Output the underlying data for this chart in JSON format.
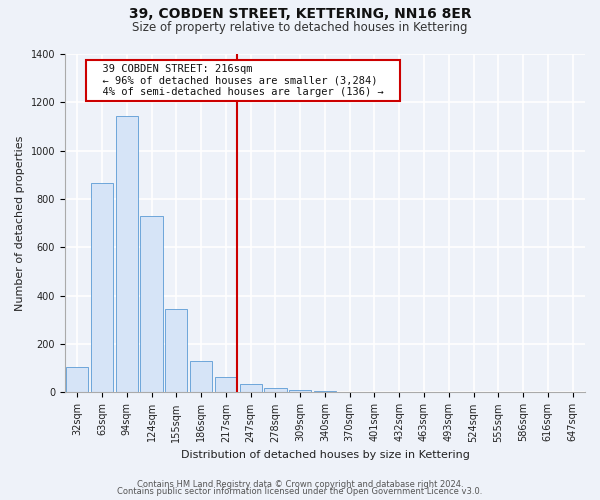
{
  "title": "39, COBDEN STREET, KETTERING, NN16 8ER",
  "subtitle": "Size of property relative to detached houses in Kettering",
  "xlabel": "Distribution of detached houses by size in Kettering",
  "ylabel": "Number of detached properties",
  "bar_labels": [
    "32sqm",
    "63sqm",
    "94sqm",
    "124sqm",
    "155sqm",
    "186sqm",
    "217sqm",
    "247sqm",
    "278sqm",
    "309sqm",
    "340sqm",
    "370sqm",
    "401sqm",
    "432sqm",
    "463sqm",
    "493sqm",
    "524sqm",
    "555sqm",
    "586sqm",
    "616sqm",
    "647sqm"
  ],
  "bar_values": [
    105,
    865,
    1145,
    730,
    345,
    130,
    65,
    33,
    18,
    10,
    8,
    0,
    0,
    0,
    0,
    0,
    0,
    0,
    0,
    0,
    0
  ],
  "bar_face_color": "#d6e4f7",
  "bar_edge_color": "#5b9bd5",
  "highlight_line_color": "#cc0000",
  "highlight_index": 6,
  "annotation_title": "39 COBDEN STREET: 216sqm",
  "annotation_line1": "← 96% of detached houses are smaller (3,284)",
  "annotation_line2": "4% of semi-detached houses are larger (136) →",
  "annotation_box_facecolor": "#ffffff",
  "annotation_box_edgecolor": "#cc0000",
  "ylim": [
    0,
    1400
  ],
  "yticks": [
    0,
    200,
    400,
    600,
    800,
    1000,
    1200,
    1400
  ],
  "footer1": "Contains HM Land Registry data © Crown copyright and database right 2024.",
  "footer2": "Contains public sector information licensed under the Open Government Licence v3.0.",
  "bg_color": "#eef2f9",
  "grid_color": "#ffffff",
  "title_fontsize": 10,
  "subtitle_fontsize": 8.5,
  "axis_label_fontsize": 8,
  "tick_fontsize": 7,
  "footer_fontsize": 6
}
